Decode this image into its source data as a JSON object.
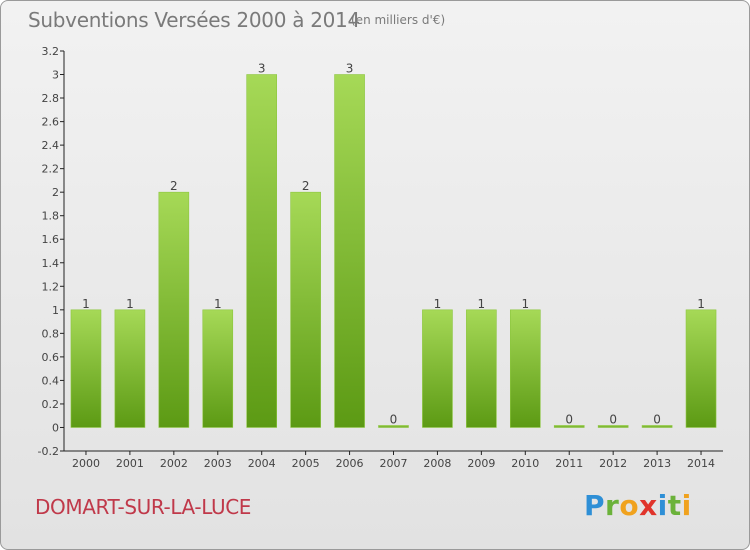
{
  "header": {
    "title": "Subventions Versées 2000 à 2014",
    "unit_note": "(en milliers d'€)"
  },
  "footer": {
    "commune": "DOMART-SUR-LA-LUCE",
    "logo_letters": [
      {
        "ch": "P",
        "color": "#2e8fd6"
      },
      {
        "ch": "r",
        "color": "#6bb23a"
      },
      {
        "ch": "o",
        "color": "#f0a21e"
      },
      {
        "ch": "x",
        "color": "#e0342b"
      },
      {
        "ch": "i",
        "color": "#2e8fd6"
      },
      {
        "ch": "t",
        "color": "#6bb23a"
      },
      {
        "ch": "i",
        "color": "#f0a21e"
      }
    ]
  },
  "chart_data": {
    "type": "bar",
    "title": "Subventions Versées 2000 à 2014",
    "subtitle": "(en milliers d'€)",
    "categories": [
      "2000",
      "2001",
      "2002",
      "2003",
      "2004",
      "2005",
      "2006",
      "2007",
      "2008",
      "2009",
      "2010",
      "2011",
      "2012",
      "2013",
      "2014"
    ],
    "values": [
      1,
      1,
      2,
      1,
      3,
      2,
      3,
      0,
      1,
      1,
      1,
      0,
      0,
      0,
      1
    ],
    "value_labels": [
      "1",
      "1",
      "2",
      "1",
      "3",
      "2",
      "3",
      "0",
      "1",
      "1",
      "1",
      "0",
      "0",
      "0",
      "1"
    ],
    "y_ticks": [
      "-0.2",
      "0",
      "0.2",
      "0.4",
      "0.6",
      "0.8",
      "1",
      "1.2",
      "1.4",
      "1.6",
      "1.8",
      "2",
      "2.2",
      "2.4",
      "2.6",
      "2.8",
      "3",
      "3.2"
    ],
    "ylim": [
      -0.2,
      3.2
    ],
    "xlabel": "",
    "ylabel": "",
    "grid": false,
    "colors": {
      "bar_top": "#a6d957",
      "bar_bottom": "#5c9a14",
      "axis": "#222222",
      "label": "#444444"
    }
  }
}
